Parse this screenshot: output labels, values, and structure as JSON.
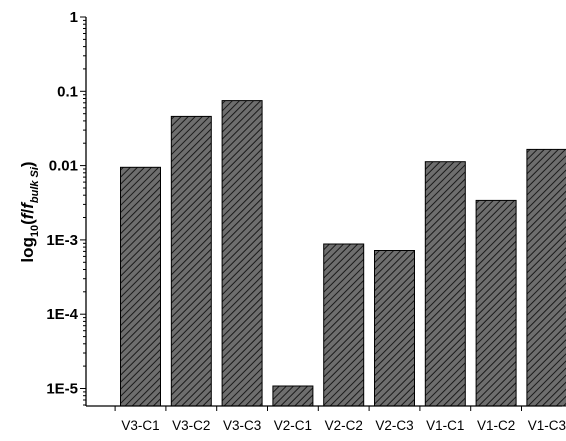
{
  "chart_data": {
    "type": "bar",
    "title": "",
    "xlabel": "",
    "ylabel": {
      "base": "log",
      "sub": "10",
      "paren_open": "(",
      "numerator": "f",
      "slash": "/",
      "denom": "f",
      "denom_sub": "bulk Si",
      "paren_close": ")"
    },
    "y_scale": "log",
    "ylim": [
      5e-06,
      1
    ],
    "y_ticks": [
      {
        "value": 1,
        "label": "1"
      },
      {
        "value": 0.1,
        "label": "0.1"
      },
      {
        "value": 0.01,
        "label": "0.01"
      },
      {
        "value": 0.001,
        "label": "1E-3"
      },
      {
        "value": 0.0001,
        "label": "1E-4"
      },
      {
        "value": 1e-05,
        "label": "1E-5"
      }
    ],
    "categories": [
      "V3-C1",
      "V3-C2",
      "V3-C3",
      "V2-C1",
      "V2-C2",
      "V2-C3",
      "V1-C1",
      "V1-C2",
      "V1-C3"
    ],
    "values": [
      0.0095,
      0.046,
      0.075,
      1.08e-05,
      0.00088,
      0.00072,
      0.0113,
      0.0034,
      0.0165
    ],
    "bar_fill": "#6e6e6e",
    "bar_hatch_color": "#1a1a1a",
    "grid": false,
    "legend": "none"
  }
}
